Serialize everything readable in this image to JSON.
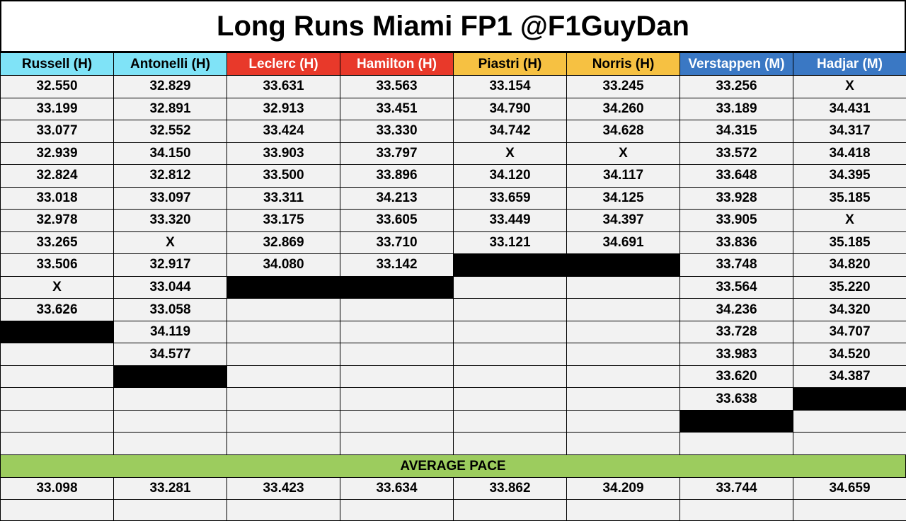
{
  "title": "Long Runs Miami FP1 @F1GuyDan",
  "columns": [
    {
      "name": "Russell (H)",
      "color": "#7fe3f7",
      "text_color": "#000000",
      "laps": [
        "32.550",
        "33.199",
        "33.077",
        "32.939",
        "32.824",
        "33.018",
        "32.978",
        "33.265",
        "33.506",
        "X",
        "33.626"
      ],
      "average": "33.098"
    },
    {
      "name": "Antonelli (H)",
      "color": "#7fe3f7",
      "text_color": "#000000",
      "laps": [
        "32.829",
        "32.891",
        "32.552",
        "34.150",
        "32.812",
        "33.097",
        "33.320",
        "X",
        "32.917",
        "33.044",
        "33.058",
        "34.119",
        "34.577"
      ],
      "average": "33.281"
    },
    {
      "name": "Leclerc (H)",
      "color": "#e8392a",
      "text_color": "#ffffff",
      "laps": [
        "33.631",
        "32.913",
        "33.424",
        "33.903",
        "33.500",
        "33.311",
        "33.175",
        "32.869",
        "34.080"
      ],
      "average": "33.423"
    },
    {
      "name": "Hamilton (H)",
      "color": "#e8392a",
      "text_color": "#ffffff",
      "laps": [
        "33.563",
        "33.451",
        "33.330",
        "33.797",
        "33.896",
        "34.213",
        "33.605",
        "33.710",
        "33.142"
      ],
      "average": "33.634"
    },
    {
      "name": "Piastri (H)",
      "color": "#f6c142",
      "text_color": "#000000",
      "laps": [
        "33.154",
        "34.790",
        "34.742",
        "X",
        "34.120",
        "33.659",
        "33.449",
        "33.121"
      ],
      "average": "33.862"
    },
    {
      "name": "Norris (H)",
      "color": "#f6c142",
      "text_color": "#000000",
      "laps": [
        "33.245",
        "34.260",
        "34.628",
        "X",
        "34.117",
        "34.125",
        "34.397",
        "34.691"
      ],
      "average": "34.209"
    },
    {
      "name": "Verstappen (M)",
      "color": "#3a78c4",
      "text_color": "#ffffff",
      "laps": [
        "33.256",
        "33.189",
        "34.315",
        "33.572",
        "33.648",
        "33.928",
        "33.905",
        "33.836",
        "33.748",
        "33.564",
        "34.236",
        "33.728",
        "33.983",
        "33.620",
        "33.638"
      ],
      "average": "33.744"
    },
    {
      "name": "Hadjar (M)",
      "color": "#3a78c4",
      "text_color": "#ffffff",
      "laps": [
        "X",
        "34.431",
        "34.317",
        "34.418",
        "34.395",
        "35.185",
        "X",
        "35.185",
        "34.820",
        "35.220",
        "34.320",
        "34.707",
        "34.520",
        "34.387"
      ],
      "average": "34.659"
    }
  ],
  "average_label": "AVERAGE PACE"
}
